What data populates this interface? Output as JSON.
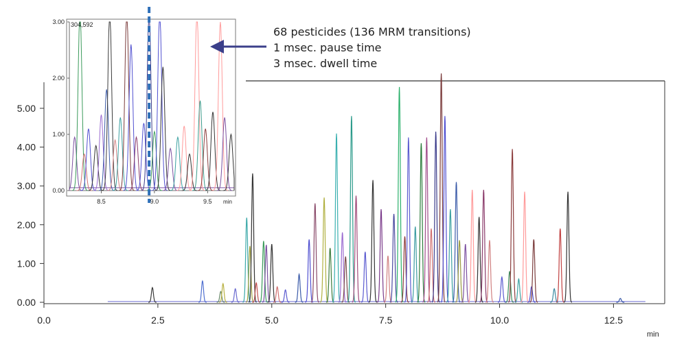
{
  "chart_data": [
    {
      "type": "line",
      "role": "main",
      "title": "",
      "xlabel": "min",
      "ylabel": "",
      "xlim": [
        0.0,
        13.0
      ],
      "ylim": [
        0.0,
        5.8
      ],
      "x_ticks": [
        "0.0",
        "2.5",
        "5.0",
        "7.5",
        "10.0",
        "12.5"
      ],
      "y_ticks": [
        "0.00",
        "1.00",
        "2.00",
        "3.00",
        "4.00",
        "5.00"
      ],
      "grid": false,
      "peaks": [
        {
          "t": 2.38,
          "h": 0.38,
          "color": "#3a3a3a"
        },
        {
          "t": 3.48,
          "h": 0.55,
          "color": "#4f6fd0"
        },
        {
          "t": 3.88,
          "h": 0.28,
          "color": "#6a8a6a"
        },
        {
          "t": 3.93,
          "h": 0.48,
          "color": "#b8b040"
        },
        {
          "t": 4.2,
          "h": 0.35,
          "color": "#6a6ad0"
        },
        {
          "t": 4.45,
          "h": 2.18,
          "color": "#3aa8a8"
        },
        {
          "t": 4.52,
          "h": 1.45,
          "color": "#a0a040"
        },
        {
          "t": 4.58,
          "h": 3.32,
          "color": "#333333"
        },
        {
          "t": 4.66,
          "h": 0.5,
          "color": "#c05050"
        },
        {
          "t": 4.82,
          "h": 1.58,
          "color": "#3a9a5a"
        },
        {
          "t": 4.88,
          "h": 1.48,
          "color": "#7a4fa0"
        },
        {
          "t": 5.0,
          "h": 1.5,
          "color": "#333333"
        },
        {
          "t": 5.12,
          "h": 0.4,
          "color": "#d07070"
        },
        {
          "t": 5.3,
          "h": 0.32,
          "color": "#5a5ad0"
        },
        {
          "t": 5.6,
          "h": 0.72,
          "color": "#3a5aa8"
        },
        {
          "t": 5.82,
          "h": 1.62,
          "color": "#4f4fd0"
        },
        {
          "t": 5.95,
          "h": 2.55,
          "color": "#8a4a6a"
        },
        {
          "t": 6.15,
          "h": 2.7,
          "color": "#b0b040"
        },
        {
          "t": 6.28,
          "h": 1.4,
          "color": "#3a7a3a"
        },
        {
          "t": 6.42,
          "h": 4.35,
          "color": "#3ab0b0"
        },
        {
          "t": 6.55,
          "h": 1.8,
          "color": "#9a6ad0"
        },
        {
          "t": 6.62,
          "h": 1.18,
          "color": "#7a4a4a"
        },
        {
          "t": 6.75,
          "h": 4.8,
          "color": "#2a9a8a"
        },
        {
          "t": 6.85,
          "h": 2.75,
          "color": "#a04a7a"
        },
        {
          "t": 7.05,
          "h": 1.3,
          "color": "#5a5ad0"
        },
        {
          "t": 7.22,
          "h": 3.15,
          "color": "#333333"
        },
        {
          "t": 7.4,
          "h": 2.4,
          "color": "#7a3a8a"
        },
        {
          "t": 7.55,
          "h": 1.2,
          "color": "#d08080"
        },
        {
          "t": 7.68,
          "h": 2.28,
          "color": "#4a4aa0"
        },
        {
          "t": 7.8,
          "h": 5.55,
          "color": "#2ab06a"
        },
        {
          "t": 7.92,
          "h": 1.7,
          "color": "#8a3a3a"
        },
        {
          "t": 8.0,
          "h": 4.25,
          "color": "#5a5ad0"
        },
        {
          "t": 8.15,
          "h": 1.95,
          "color": "#3a9aa0"
        },
        {
          "t": 8.28,
          "h": 4.1,
          "color": "#2a7a3a"
        },
        {
          "t": 8.4,
          "h": 4.25,
          "color": "#a04a8a"
        },
        {
          "t": 8.5,
          "h": 1.9,
          "color": "#d07070"
        },
        {
          "t": 8.6,
          "h": 4.4,
          "color": "#3a3a8a"
        },
        {
          "t": 8.72,
          "h": 5.9,
          "color": "#7a3a3a"
        },
        {
          "t": 8.8,
          "h": 4.8,
          "color": "#4f4fd0"
        },
        {
          "t": 8.92,
          "h": 2.4,
          "color": "#3aa0a0"
        },
        {
          "t": 9.05,
          "h": 3.1,
          "color": "#3a5aa8"
        },
        {
          "t": 9.12,
          "h": 1.6,
          "color": "#9a9a40"
        },
        {
          "t": 9.25,
          "h": 1.5,
          "color": "#7a4fa0"
        },
        {
          "t": 9.4,
          "h": 2.9,
          "color": "#ff9a9a"
        },
        {
          "t": 9.55,
          "h": 2.2,
          "color": "#333333"
        },
        {
          "t": 9.65,
          "h": 2.9,
          "color": "#8a3a6a"
        },
        {
          "t": 9.78,
          "h": 1.6,
          "color": "#d08080"
        },
        {
          "t": 10.05,
          "h": 0.65,
          "color": "#5a5ad0"
        },
        {
          "t": 10.22,
          "h": 0.8,
          "color": "#3a8a5a"
        },
        {
          "t": 10.28,
          "h": 3.95,
          "color": "#8a3a3a"
        },
        {
          "t": 10.42,
          "h": 0.6,
          "color": "#3aa0a0"
        },
        {
          "t": 10.55,
          "h": 2.85,
          "color": "#ff9a9a"
        },
        {
          "t": 10.7,
          "h": 0.4,
          "color": "#4f4fd0"
        },
        {
          "t": 10.75,
          "h": 1.62,
          "color": "#7a3a3a"
        },
        {
          "t": 11.2,
          "h": 0.35,
          "color": "#3a8aa0"
        },
        {
          "t": 11.33,
          "h": 1.9,
          "color": "#c04040"
        },
        {
          "t": 11.5,
          "h": 2.85,
          "color": "#333333"
        },
        {
          "t": 12.65,
          "h": 0.1,
          "color": "#3a5aa8"
        }
      ]
    },
    {
      "type": "line",
      "role": "inset",
      "title": "",
      "xlabel": "min",
      "ylabel": "",
      "xlim": [
        8.2,
        9.75
      ],
      "ylim": [
        0.0,
        3.0
      ],
      "x_ticks": [
        "8.5",
        "9.0",
        "9.5"
      ],
      "y_ticks": [
        "0.00",
        "1.00",
        "2.00",
        "3.00"
      ],
      "readout": "304,592",
      "marker_x": 8.95,
      "marker_color": "#2e6fb8",
      "peaks": [
        {
          "t": 8.25,
          "h": 0.95,
          "color": "#7a4fa0"
        },
        {
          "t": 8.3,
          "h": 3.2,
          "color": "#3a9a5a"
        },
        {
          "t": 8.34,
          "h": 0.65,
          "color": "#d07070"
        },
        {
          "t": 8.38,
          "h": 1.1,
          "color": "#4f4fd0"
        },
        {
          "t": 8.45,
          "h": 0.8,
          "color": "#333333"
        },
        {
          "t": 8.5,
          "h": 1.35,
          "color": "#9a6ad0"
        },
        {
          "t": 8.55,
          "h": 1.8,
          "color": "#3a5aa8"
        },
        {
          "t": 8.58,
          "h": 3.2,
          "color": "#3a3a3a"
        },
        {
          "t": 8.63,
          "h": 0.9,
          "color": "#d08080"
        },
        {
          "t": 8.68,
          "h": 1.3,
          "color": "#3aa0a0"
        },
        {
          "t": 8.74,
          "h": 3.2,
          "color": "#7a3a3a"
        },
        {
          "t": 8.78,
          "h": 2.6,
          "color": "#4f4fd0"
        },
        {
          "t": 8.83,
          "h": 0.95,
          "color": "#8a3a6a"
        },
        {
          "t": 8.9,
          "h": 1.2,
          "color": "#4f4fd0"
        },
        {
          "t": 8.95,
          "h": 3.2,
          "color": "#3a3a8a"
        },
        {
          "t": 9.0,
          "h": 1.05,
          "color": "#3a9a5a"
        },
        {
          "t": 9.05,
          "h": 3.2,
          "color": "#4f4fd0"
        },
        {
          "t": 9.08,
          "h": 2.2,
          "color": "#333333"
        },
        {
          "t": 9.15,
          "h": 0.75,
          "color": "#7a4fa0"
        },
        {
          "t": 9.22,
          "h": 0.95,
          "color": "#3aa0a0"
        },
        {
          "t": 9.28,
          "h": 1.15,
          "color": "#ff9a9a"
        },
        {
          "t": 9.33,
          "h": 0.65,
          "color": "#333333"
        },
        {
          "t": 9.4,
          "h": 3.2,
          "color": "#ff9a9a"
        },
        {
          "t": 9.43,
          "h": 1.6,
          "color": "#3a9a8a"
        },
        {
          "t": 9.48,
          "h": 1.1,
          "color": "#8a3a3a"
        },
        {
          "t": 9.55,
          "h": 1.4,
          "color": "#333333"
        },
        {
          "t": 9.62,
          "h": 3.0,
          "color": "#ff9a9a"
        },
        {
          "t": 9.66,
          "h": 1.3,
          "color": "#7a4fa0"
        },
        {
          "t": 9.72,
          "h": 1.0,
          "color": "#333333"
        }
      ]
    }
  ],
  "annotation": {
    "line1": "68 pesticides (136 MRM transitions)",
    "line2": "1 msec. pause time",
    "line3": "3 msec. dwell time",
    "arrow_color": "#3b3f8a"
  }
}
